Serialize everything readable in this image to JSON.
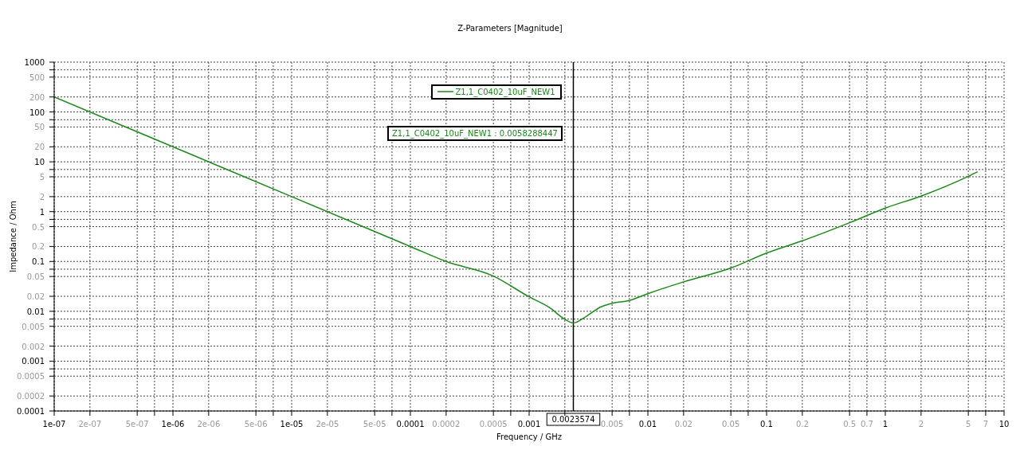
{
  "chart_data": {
    "type": "line",
    "title": "Z-Parameters [Magnitude]",
    "xlabel": "Frequency / GHz",
    "ylabel": "Impedance / Ohm",
    "log": "xy",
    "grid": true,
    "legend": "top",
    "line_style": "solid",
    "marker": "none",
    "xlim": [
      1e-07,
      10
    ],
    "ylim": [
      0.0001,
      1000
    ],
    "xticks": [
      {
        "value": 1e-07,
        "label": "1e-07"
      },
      {
        "value": 2e-07,
        "label": "2e-07"
      },
      {
        "value": 5e-07,
        "label": "5e-07"
      },
      {
        "value": 7e-07,
        "label": null
      },
      {
        "value": 1e-06,
        "label": "1e-06"
      },
      {
        "value": 2e-06,
        "label": "2e-06"
      },
      {
        "value": 5e-06,
        "label": "5e-06"
      },
      {
        "value": 7e-06,
        "label": null
      },
      {
        "value": 1e-05,
        "label": "1e-05"
      },
      {
        "value": 2e-05,
        "label": "2e-05"
      },
      {
        "value": 5e-05,
        "label": "5e-05"
      },
      {
        "value": 7e-05,
        "label": null
      },
      0.0001,
      0.0002,
      0.0005,
      {
        "value": 0.0007,
        "label": null
      },
      0.001,
      {
        "value": 0.002,
        "label": null
      },
      0.005,
      {
        "value": 0.007,
        "label": null
      },
      0.01,
      0.02,
      0.05,
      {
        "value": 0.07,
        "label": null
      },
      0.1,
      0.2,
      0.5,
      0.7,
      1,
      2,
      5,
      7,
      10
    ],
    "yticks": [
      0.0001,
      0.0002,
      0.0005,
      {
        "value": 0.0007,
        "label": null
      },
      0.001,
      0.002,
      0.005,
      {
        "value": 0.007,
        "label": null
      },
      0.01,
      0.02,
      0.05,
      {
        "value": 0.07,
        "label": null
      },
      0.1,
      0.2,
      0.5,
      {
        "value": 0.7,
        "label": null
      },
      1,
      2,
      5,
      {
        "value": 7,
        "label": null
      },
      10,
      20,
      50,
      {
        "value": 70,
        "label": null
      },
      100,
      200,
      500,
      {
        "value": 700,
        "label": null
      },
      1000
    ],
    "x": [
      1e-07,
      1e-06,
      1e-05,
      0.0001,
      0.0002,
      0.0005,
      0.001,
      0.0015,
      0.002,
      0.0023574,
      0.003,
      0.004,
      0.005,
      0.007,
      0.01,
      0.02,
      0.05,
      0.1,
      0.2,
      0.5,
      1,
      2,
      5,
      6
    ],
    "series": [
      {
        "name": "Z1,1_C0402_10uF_NEW1",
        "color": "#1a8a1a",
        "values": [
          200,
          20,
          2,
          0.2,
          0.1,
          0.051,
          0.0195,
          0.0117,
          0.0069,
          0.0058288447,
          0.0078,
          0.0122,
          0.0145,
          0.0165,
          0.0226,
          0.039,
          0.074,
          0.147,
          0.26,
          0.6,
          1.18,
          2.05,
          5.1,
          6.3
        ]
      }
    ],
    "ref_lines": [
      {
        "axis": "x",
        "value": 0.0023574,
        "label": "0.0023574",
        "color": "#000000"
      }
    ],
    "annotations": [
      "Z1,1_C0402_10uF_NEW1 : 0.0058288447"
    ]
  }
}
